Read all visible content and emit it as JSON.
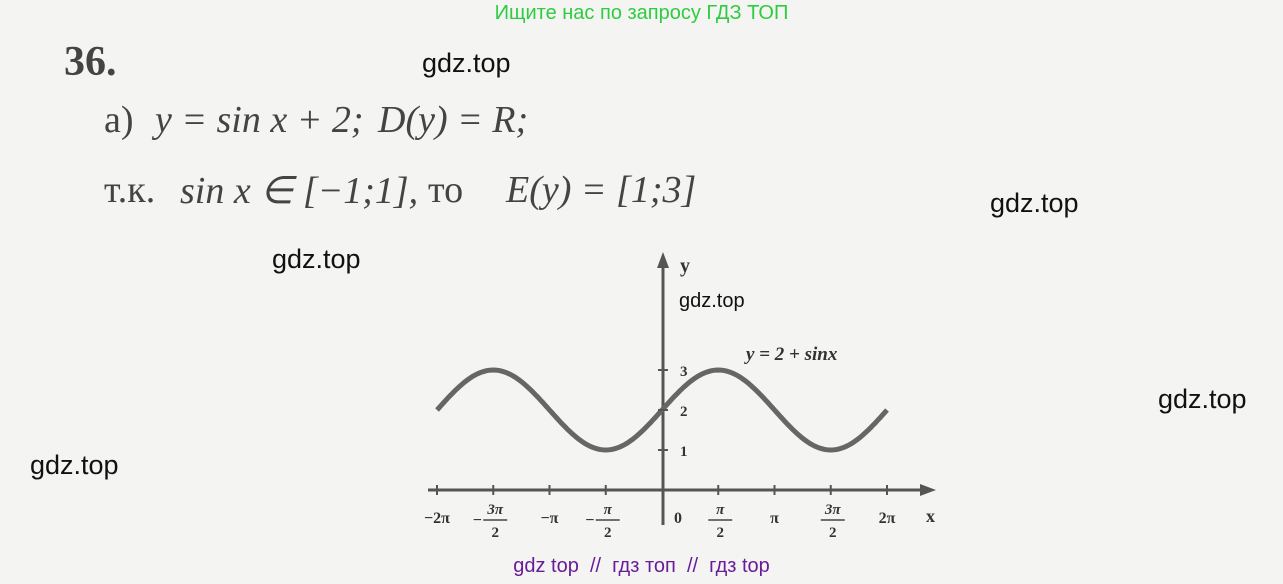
{
  "banner": "Ищите нас по запросу ГДЗ ТОП",
  "problem": {
    "number": "36.",
    "line_a": [
      "а)",
      "y = sin x + 2;",
      "D(y) = R;"
    ],
    "line_b": [
      "т.к.",
      "sin x ∈ [−1;1],",
      "то",
      "E(y) = [1;3]"
    ]
  },
  "graph": {
    "x_axis_label": "x",
    "y_axis_label": "y",
    "curve_label": "y = 2 + sinx",
    "x_tick_labels": [
      {
        "text": "−2π"
      },
      {
        "sign": "−",
        "num": "3π",
        "den": "2"
      },
      {
        "text": "−π"
      },
      {
        "sign": "−",
        "num": "π",
        "den": "2"
      },
      {
        "text": "0"
      },
      {
        "num": "π",
        "den": "2"
      },
      {
        "text": "π"
      },
      {
        "num": "3π",
        "den": "2"
      },
      {
        "text": "2π"
      }
    ],
    "y_tick_labels": [
      "1",
      "2",
      "3"
    ]
  },
  "watermarks": [
    "gdz.top",
    "gdz.top",
    "gdz.top",
    "gdz.top",
    "gdz.top",
    "gdz.top"
  ],
  "footer": "gdz top  //  гдз топ  //  гдз top"
}
